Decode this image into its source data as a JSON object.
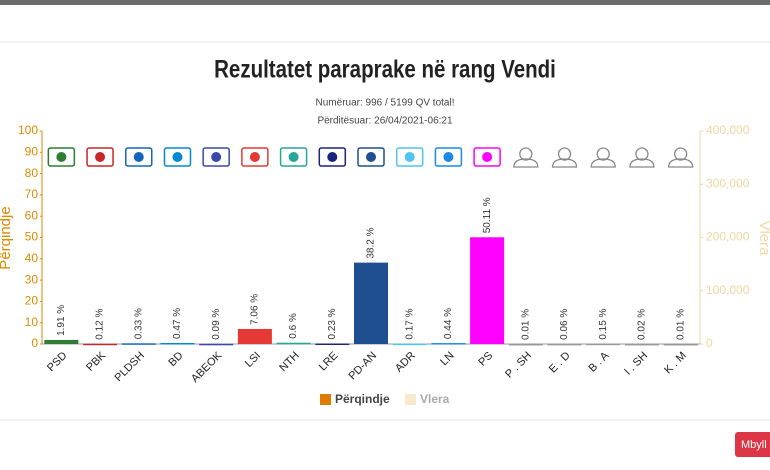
{
  "chart_data": {
    "type": "bar",
    "title": "Rezultatet paraprake në rang Vendi",
    "subtitle": "Numëruar: 996 / 5199 QV total!",
    "updated": "Përditësuar: 26/04/2021-06:21",
    "ylabel": "Përqindje",
    "y2label": "Vlera",
    "categories": [
      "PSD",
      "PBK",
      "PLDSH",
      "BD",
      "ABEOK",
      "LSI",
      "NTH",
      "LRE",
      "PD-AN",
      "ADR",
      "LN",
      "PS",
      "P . SH",
      "E . D",
      "B . A",
      "I . SH",
      "K . M"
    ],
    "values": [
      1.91,
      0.12,
      0.33,
      0.47,
      0.09,
      7.06,
      0.6,
      0.23,
      38.2,
      0.17,
      0.44,
      50.11,
      0.01,
      0.06,
      0.15,
      0.02,
      0.01
    ],
    "value_labels": [
      "1.91 %",
      "0.12 %",
      "0.33 %",
      "0.47 %",
      "0.09 %",
      "7.06 %",
      "0.6 %",
      "0.23 %",
      "38.2 %",
      "0.17 %",
      "0.44 %",
      "50.11 %",
      "0.01 %",
      "0.06 %",
      "0.15 %",
      "0.02 %",
      "0.01 %"
    ],
    "colors": [
      "#2e7d32",
      "#c62828",
      "#1565c0",
      "#0288d1",
      "#3949ab",
      "#e53935",
      "#26a69a",
      "#1a237e",
      "#1f4e91",
      "#4fc3f7",
      "#1e88e5",
      "#ff00ff",
      "#999999",
      "#999999",
      "#999999",
      "#999999",
      "#999999"
    ],
    "ylim": [
      0,
      100
    ],
    "yticks": [
      0,
      10,
      20,
      30,
      40,
      50,
      60,
      70,
      80,
      90,
      100
    ],
    "y2lim": [
      0,
      400000
    ],
    "y2ticks": [
      0,
      {
        "value": 100000,
        "label": "100,000"
      },
      {
        "value": 200000,
        "label": "200,000"
      },
      {
        "value": 300000,
        "label": "300,000"
      },
      {
        "value": 400000,
        "label": "400,000"
      }
    ],
    "legend": [
      {
        "name": "Përqindje",
        "color": "#e07b00"
      },
      {
        "name": "Vlera",
        "color": "#f8e8cc"
      }
    ]
  },
  "button": "Mbyll"
}
